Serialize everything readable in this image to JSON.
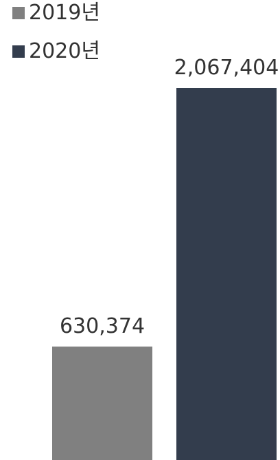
{
  "chart_data": {
    "type": "bar",
    "title": "",
    "xlabel": "",
    "ylabel": "",
    "categories": [
      "2019년",
      "2020년"
    ],
    "values": [
      630374,
      2067404
    ],
    "value_labels": [
      "630,374",
      "2,067,404"
    ],
    "colors": [
      "#808080",
      "#333d4d"
    ],
    "legend": {
      "placement": "top-left",
      "entries": [
        "2019년",
        "2020년"
      ]
    },
    "grid": false,
    "ylim": [
      0,
      2067404
    ]
  }
}
